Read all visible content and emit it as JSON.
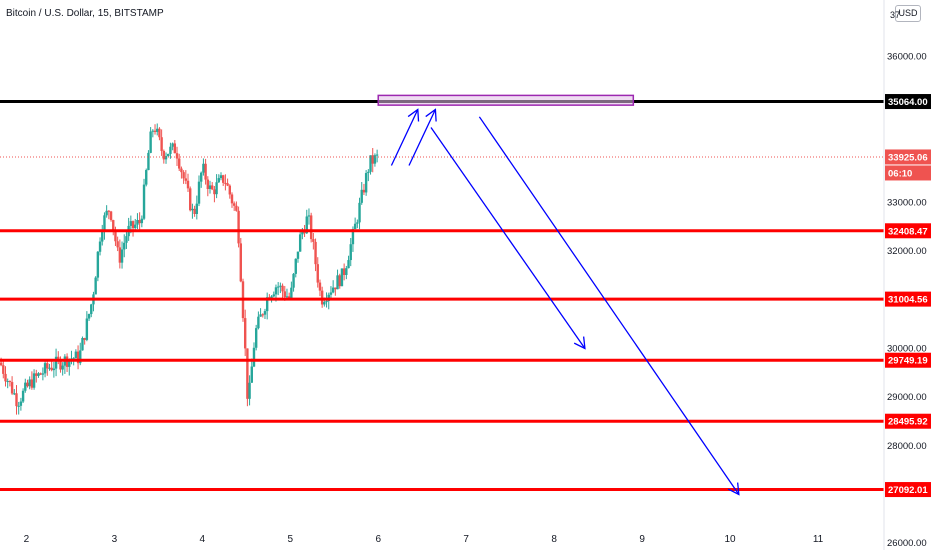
{
  "header": {
    "symbol_title": "Bitcoin / U.S. Dollar, 15, BITSTAMP",
    "currency_button": "USD",
    "top_price_partial": "37"
  },
  "colors": {
    "up": "#26a69a",
    "down": "#ef5350",
    "level": "#ff0000",
    "resistance": "#000000",
    "arrow": "#0000ff",
    "zone_border": "#9c27b0",
    "zone_fill": "#e1bee7",
    "current_price_tag": "#ef5350"
  },
  "chart_data": {
    "type": "line",
    "title": "Bitcoin / U.S. Dollar, 15, BITSTAMP",
    "xlabel": "",
    "ylabel": "",
    "x_ticks": [
      "2",
      "3",
      "4",
      "5",
      "6",
      "7",
      "8",
      "9",
      "10",
      "11"
    ],
    "x_range": [
      1.7,
      11.75
    ],
    "y_ticks": [
      "36000.00",
      "33000.00",
      "32000.00",
      "30000.00",
      "29000.00",
      "28000.00",
      "26000.00"
    ],
    "y_range": [
      25850,
      37150
    ],
    "series": [
      {
        "x": [
          1.7,
          1.9,
          2.05,
          2.25,
          2.5,
          2.6,
          2.75,
          2.85,
          2.95,
          3.05,
          3.15,
          3.3,
          3.4,
          3.45,
          3.55,
          3.7,
          3.8,
          3.9,
          4.0,
          4.1,
          4.25,
          4.4,
          4.48,
          4.52,
          4.6,
          4.75,
          4.85,
          5.0,
          5.1,
          5.2,
          5.25,
          5.35,
          5.5,
          5.6,
          5.7,
          5.8,
          5.9,
          6.0
        ],
        "y": [
          29700,
          28900,
          29300,
          29600,
          29800,
          29800,
          31000,
          32500,
          32900,
          31800,
          32400,
          32600,
          34200,
          34600,
          34000,
          34100,
          33400,
          32700,
          33700,
          33200,
          33500,
          32700,
          30200,
          28800,
          30300,
          31100,
          31300,
          31000,
          32200,
          32700,
          32200,
          31000,
          31300,
          31500,
          32200,
          33000,
          33800,
          33925
        ]
      }
    ],
    "price_levels": [
      {
        "value": "35064.00",
        "role": "resistance"
      },
      {
        "value": "32408.47",
        "role": "support"
      },
      {
        "value": "31004.56",
        "role": "support"
      },
      {
        "value": "29749.19",
        "role": "support"
      },
      {
        "value": "28495.92",
        "role": "support"
      },
      {
        "value": "27092.01",
        "role": "support"
      }
    ],
    "current_price": {
      "value": "33925.06",
      "countdown": "06:10"
    },
    "annotations": [
      {
        "type": "zone",
        "x": [
          6.0,
          8.9
        ],
        "y": [
          34990,
          35190
        ]
      },
      {
        "type": "arrow",
        "from": [
          6.15,
          33750
        ],
        "to": [
          6.45,
          34900
        ]
      },
      {
        "type": "arrow",
        "from": [
          6.35,
          33750
        ],
        "to": [
          6.65,
          34900
        ]
      },
      {
        "type": "arrow",
        "from": [
          6.6,
          34530
        ],
        "to": [
          8.35,
          29990
        ]
      },
      {
        "type": "arrow",
        "from": [
          7.15,
          34750
        ],
        "to": [
          10.1,
          26990
        ]
      }
    ]
  }
}
